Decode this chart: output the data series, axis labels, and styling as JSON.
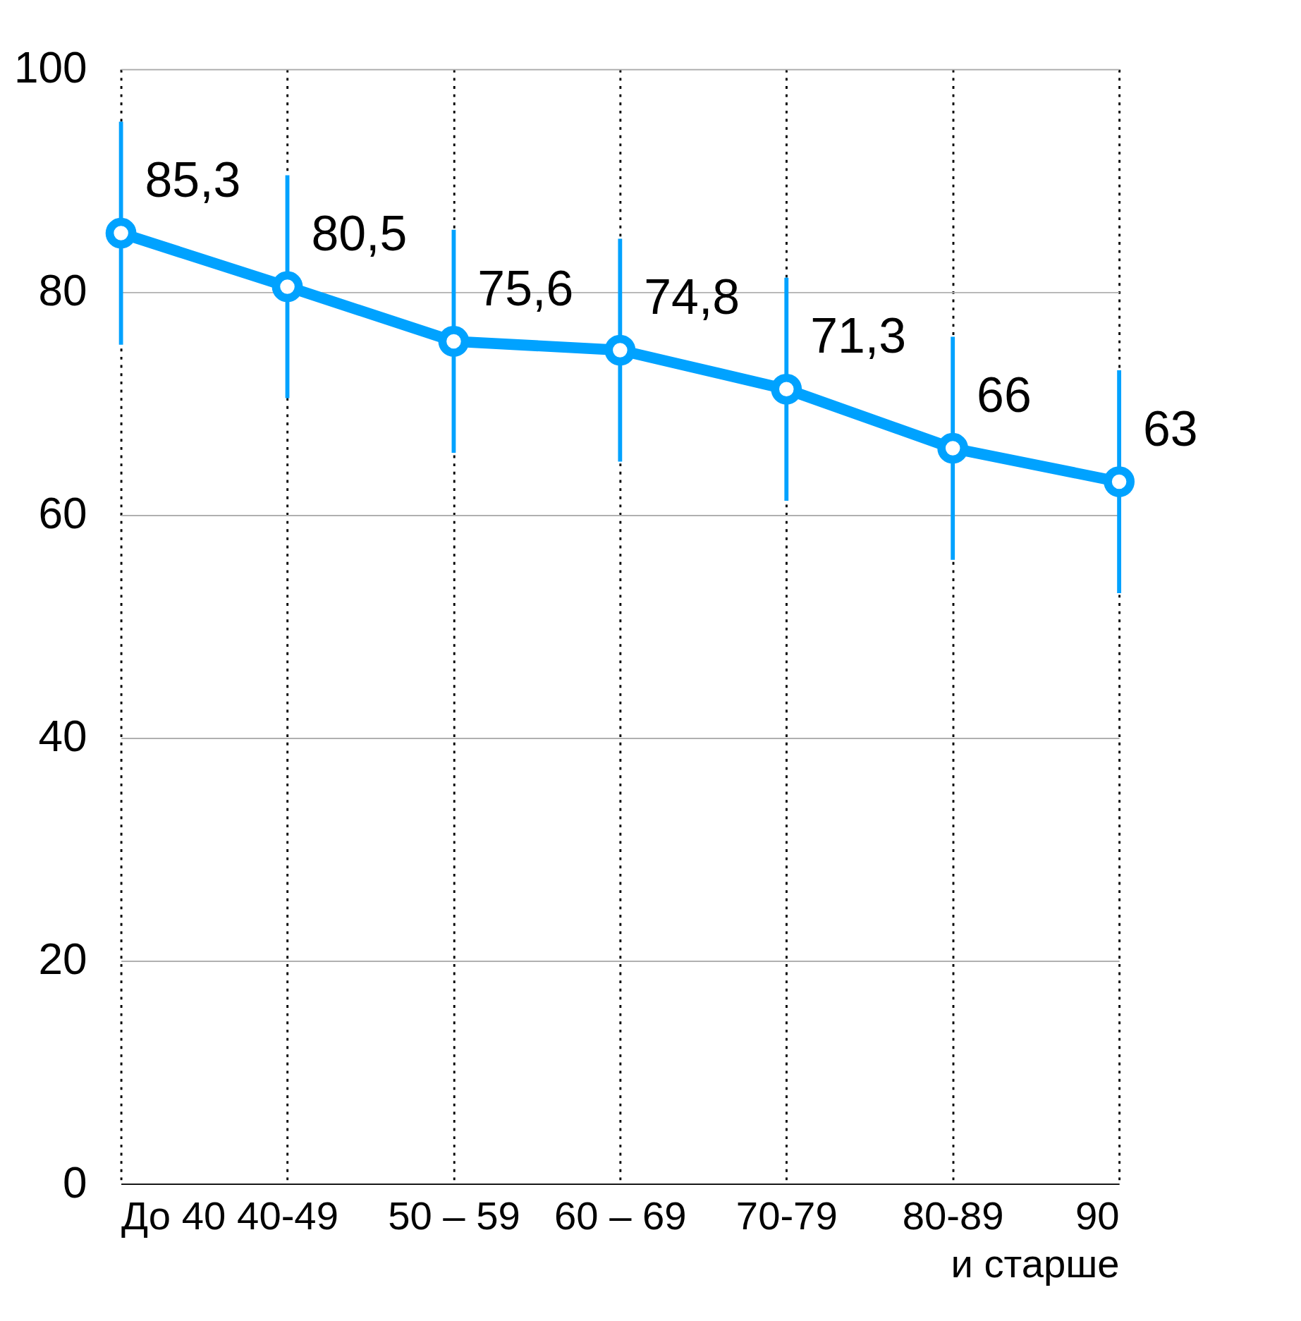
{
  "chart_data": {
    "type": "line",
    "categories": [
      "До 40",
      "40-49",
      "50 – 59",
      "60 – 69",
      "70-79",
      "80-89",
      "90\nи старше"
    ],
    "color": "#00a2ff",
    "values": [
      85.3,
      80.5,
      75.6,
      74.8,
      71.3,
      66,
      63
    ],
    "errors": [
      10,
      10,
      10,
      10,
      10,
      10,
      10
    ],
    "value_labels": [
      "85,3",
      "80,5",
      "75,6",
      "74,8",
      "71,3",
      "66",
      "63"
    ],
    "ylim": [
      0,
      100
    ],
    "yticks": [
      0,
      20,
      40,
      60,
      80,
      100
    ],
    "grid": true,
    "marker": "circle",
    "line_style": "solid"
  }
}
